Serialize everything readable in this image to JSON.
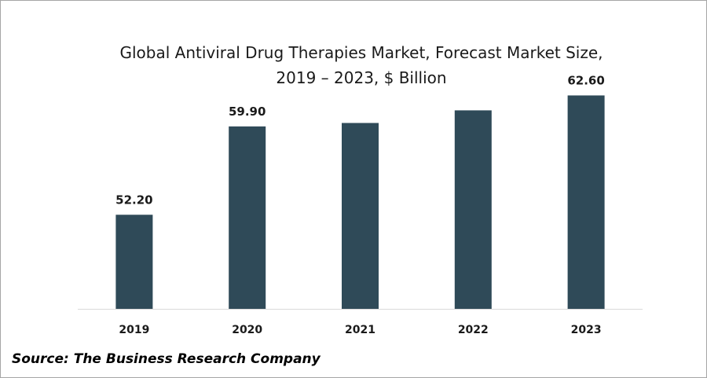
{
  "chart_data": {
    "type": "bar",
    "title": "Global Antiviral Drug Therapies Market, Forecast Market Size, 2019 – 2023, $ Billion",
    "title_lines": [
      "Global Antiviral Drug Therapies Market, Forecast Market Size,",
      "2019 – 2023, $ Billion"
    ],
    "categories": [
      "2019",
      "2020",
      "2021",
      "2022",
      "2023"
    ],
    "values": [
      52.2,
      59.9,
      60.2,
      61.3,
      62.6
    ],
    "data_labels": [
      "52.20",
      "59.90",
      "",
      "",
      "62.60"
    ],
    "xlabel": "",
    "ylabel": "",
    "ylim": [
      44,
      64
    ],
    "grid": false,
    "legend": "none",
    "bar_color": "#2f4a58"
  },
  "source": "Source: The Business Research Company"
}
